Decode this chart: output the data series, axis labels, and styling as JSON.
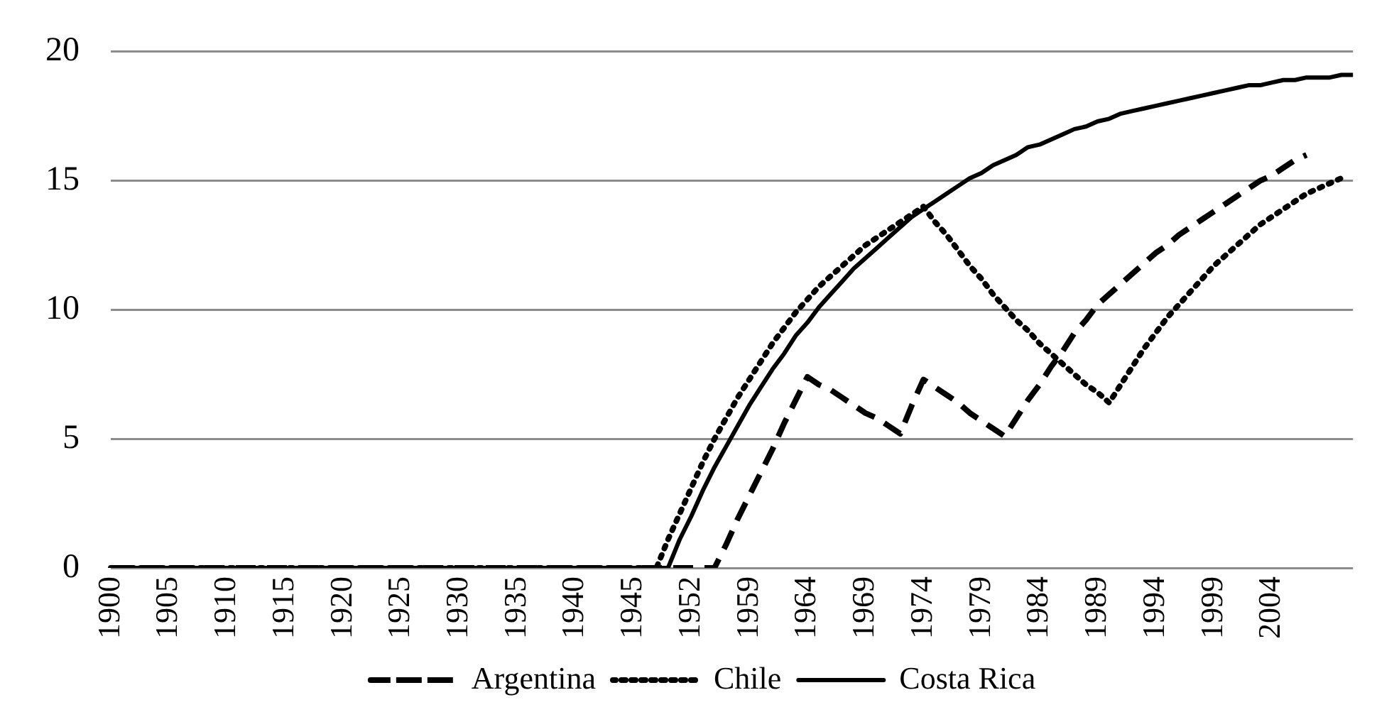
{
  "chart_data": {
    "type": "line",
    "categories": [
      "1900",
      null,
      null,
      null,
      null,
      "1905",
      null,
      null,
      null,
      null,
      "1910",
      null,
      null,
      null,
      null,
      "1915",
      null,
      null,
      null,
      null,
      "1920",
      null,
      null,
      null,
      null,
      "1925",
      null,
      null,
      null,
      null,
      "1930",
      null,
      null,
      null,
      null,
      "1935",
      null,
      null,
      null,
      null,
      "1940",
      null,
      null,
      null,
      null,
      "1945",
      null,
      null,
      null,
      null,
      "1952",
      null,
      null,
      null,
      null,
      "1959",
      null,
      null,
      null,
      null,
      "1964",
      null,
      null,
      null,
      null,
      "1969",
      null,
      null,
      null,
      null,
      "1974",
      null,
      null,
      null,
      null,
      "1979",
      null,
      null,
      null,
      null,
      "1984",
      null,
      null,
      null,
      null,
      "1989",
      null,
      null,
      null,
      null,
      "1994",
      null,
      null,
      null,
      null,
      "1999",
      null,
      null,
      null,
      null,
      "2004",
      null,
      null,
      null,
      null,
      null,
      null,
      null
    ],
    "series": [
      {
        "name": "Argentina",
        "color": "#000000",
        "line_style": "dashed",
        "values": [
          0,
          0,
          0,
          0,
          0,
          0,
          0,
          0,
          0,
          0,
          0,
          0,
          0,
          0,
          0,
          0,
          0,
          0,
          0,
          0,
          0,
          0,
          0,
          0,
          0,
          0,
          0,
          0,
          0,
          0,
          0,
          0,
          0,
          0,
          0,
          0,
          0,
          0,
          0,
          0,
          0,
          0,
          0,
          0,
          0,
          0,
          0,
          0,
          0,
          0,
          0,
          0,
          0,
          0.9,
          1.9,
          2.8,
          3.7,
          4.6,
          5.6,
          6.5,
          7.4,
          7.1,
          6.9,
          6.6,
          6.3,
          6.0,
          5.8,
          5.5,
          5.2,
          6.3,
          7.3,
          7.0,
          6.7,
          6.4,
          6.0,
          5.7,
          5.4,
          5.1,
          5.8,
          6.5,
          7.1,
          7.8,
          8.4,
          9.1,
          9.6,
          10.2,
          10.6,
          11.0,
          11.4,
          11.8,
          12.2,
          12.5,
          12.9,
          13.2,
          13.5,
          13.8,
          14.1,
          14.4,
          14.7,
          15.0,
          15.2,
          15.5,
          15.8,
          16.0,
          null,
          null,
          null,
          null
        ]
      },
      {
        "name": "Chile",
        "color": "#000000",
        "line_style": "dotted",
        "values": [
          0,
          0,
          0,
          0,
          0,
          0,
          0,
          0,
          0,
          0,
          0,
          0,
          0,
          0,
          0,
          0,
          0,
          0,
          0,
          0,
          0,
          0,
          0,
          0,
          0,
          0,
          0,
          0,
          0,
          0,
          0,
          0,
          0,
          0,
          0,
          0,
          0,
          0,
          0,
          0,
          0,
          0,
          0,
          0,
          0,
          0,
          0,
          0,
          1.1,
          2.1,
          3.1,
          4.1,
          5.0,
          5.8,
          6.6,
          7.3,
          8.0,
          8.7,
          9.3,
          9.9,
          10.4,
          10.9,
          11.3,
          11.7,
          12.1,
          12.5,
          12.8,
          13.1,
          13.4,
          13.7,
          14.0,
          13.4,
          12.9,
          12.3,
          11.7,
          11.2,
          10.6,
          10.1,
          9.6,
          9.2,
          8.7,
          8.3,
          7.9,
          7.5,
          7.1,
          6.8,
          6.4,
          7.1,
          7.8,
          8.5,
          9.1,
          9.7,
          10.2,
          10.7,
          11.2,
          11.7,
          12.1,
          12.5,
          12.9,
          13.3,
          13.6,
          13.9,
          14.2,
          14.5,
          14.7,
          14.9,
          15.1,
          null
        ]
      },
      {
        "name": "Costa Rica",
        "color": "#000000",
        "line_style": "solid",
        "values": [
          0,
          0,
          0,
          0,
          0,
          0,
          0,
          0,
          0,
          0,
          0,
          0,
          0,
          0,
          0,
          0,
          0,
          0,
          0,
          0,
          0,
          0,
          0,
          0,
          0,
          0,
          0,
          0,
          0,
          0,
          0,
          0,
          0,
          0,
          0,
          0,
          0,
          0,
          0,
          0,
          0,
          0,
          0,
          0,
          0,
          0,
          0,
          0,
          0,
          1.1,
          2.0,
          3.0,
          3.9,
          4.7,
          5.5,
          6.3,
          7.0,
          7.7,
          8.3,
          9.0,
          9.5,
          10.1,
          10.6,
          11.1,
          11.6,
          12.0,
          12.4,
          12.8,
          13.2,
          13.6,
          13.9,
          14.2,
          14.5,
          14.8,
          15.1,
          15.3,
          15.6,
          15.8,
          16.0,
          16.3,
          16.4,
          16.6,
          16.8,
          17.0,
          17.1,
          17.3,
          17.4,
          17.6,
          17.7,
          17.8,
          17.9,
          18.0,
          18.1,
          18.2,
          18.3,
          18.4,
          18.5,
          18.6,
          18.7,
          18.7,
          18.8,
          18.9,
          18.9,
          19.0,
          19.0,
          19.0,
          19.1,
          19.1
        ]
      }
    ],
    "ylim": [
      0,
      20
    ],
    "yticks": [
      0,
      5,
      10,
      15,
      20
    ],
    "grid": "y",
    "legend": "bottom",
    "marker": "none"
  }
}
